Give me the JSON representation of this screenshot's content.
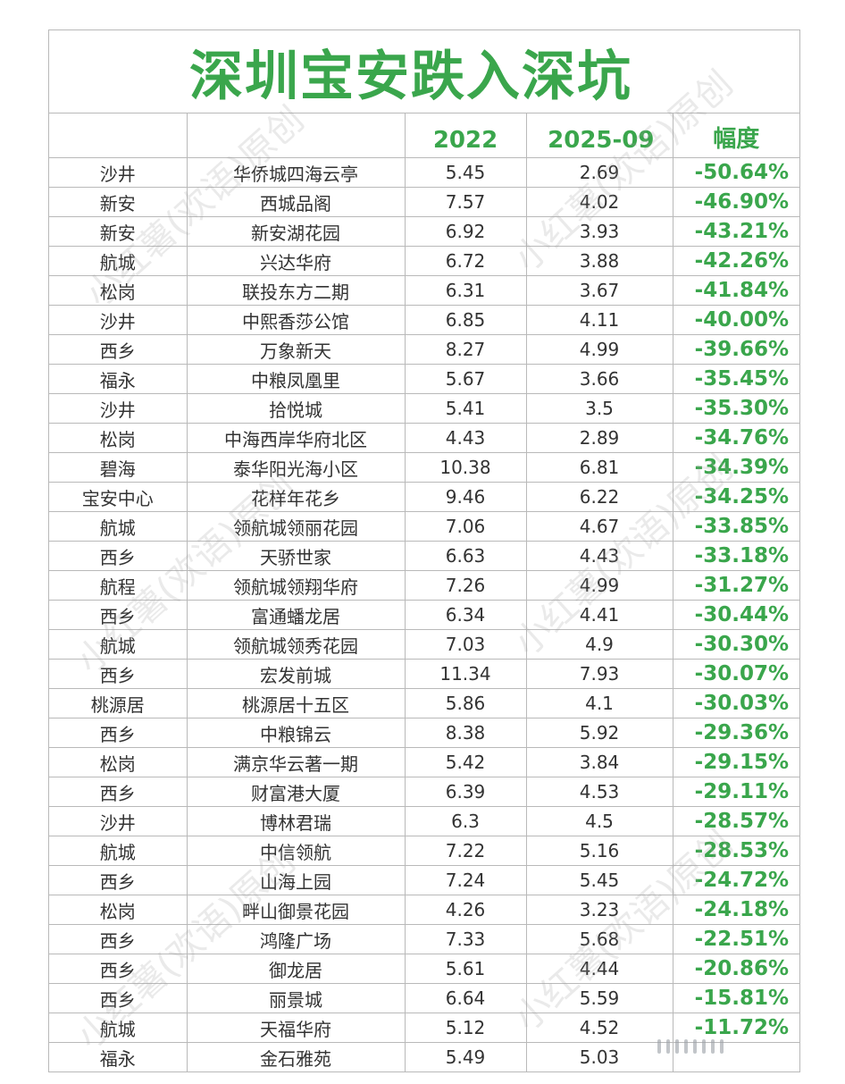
{
  "title": "深圳宝安跌入深坑",
  "watermark": "小红薯(欢语)原创",
  "columns": [
    "",
    "",
    "2022",
    "2025-09",
    "幅度"
  ],
  "rows": [
    {
      "area": "沙井",
      "estate": "华侨城四海云亭",
      "y2022": "5.45",
      "y2025": "2.69",
      "change": "-50.64%"
    },
    {
      "area": "新安",
      "estate": "西城品阁",
      "y2022": "7.57",
      "y2025": "4.02",
      "change": "-46.90%"
    },
    {
      "area": "新安",
      "estate": "新安湖花园",
      "y2022": "6.92",
      "y2025": "3.93",
      "change": "-43.21%"
    },
    {
      "area": "航城",
      "estate": "兴达华府",
      "y2022": "6.72",
      "y2025": "3.88",
      "change": "-42.26%"
    },
    {
      "area": "松岗",
      "estate": "联投东方二期",
      "y2022": "6.31",
      "y2025": "3.67",
      "change": "-41.84%"
    },
    {
      "area": "沙井",
      "estate": "中熙香莎公馆",
      "y2022": "6.85",
      "y2025": "4.11",
      "change": "-40.00%"
    },
    {
      "area": "西乡",
      "estate": "万象新天",
      "y2022": "8.27",
      "y2025": "4.99",
      "change": "-39.66%"
    },
    {
      "area": "福永",
      "estate": "中粮凤凰里",
      "y2022": "5.67",
      "y2025": "3.66",
      "change": "-35.45%"
    },
    {
      "area": "沙井",
      "estate": "拾悦城",
      "y2022": "5.41",
      "y2025": "3.5",
      "change": "-35.30%"
    },
    {
      "area": "松岗",
      "estate": "中海西岸华府北区",
      "y2022": "4.43",
      "y2025": "2.89",
      "change": "-34.76%"
    },
    {
      "area": "碧海",
      "estate": "泰华阳光海小区",
      "y2022": "10.38",
      "y2025": "6.81",
      "change": "-34.39%"
    },
    {
      "area": "宝安中心",
      "estate": "花样年花乡",
      "y2022": "9.46",
      "y2025": "6.22",
      "change": "-34.25%"
    },
    {
      "area": "航城",
      "estate": "领航城领丽花园",
      "y2022": "7.06",
      "y2025": "4.67",
      "change": "-33.85%"
    },
    {
      "area": "西乡",
      "estate": "天骄世家",
      "y2022": "6.63",
      "y2025": "4.43",
      "change": "-33.18%"
    },
    {
      "area": "航程",
      "estate": "领航城领翔华府",
      "y2022": "7.26",
      "y2025": "4.99",
      "change": "-31.27%"
    },
    {
      "area": "西乡",
      "estate": "富通蟠龙居",
      "y2022": "6.34",
      "y2025": "4.41",
      "change": "-30.44%"
    },
    {
      "area": "航城",
      "estate": "领航城领秀花园",
      "y2022": "7.03",
      "y2025": "4.9",
      "change": "-30.30%"
    },
    {
      "area": "西乡",
      "estate": "宏发前城",
      "y2022": "11.34",
      "y2025": "7.93",
      "change": "-30.07%"
    },
    {
      "area": "桃源居",
      "estate": "桃源居十五区",
      "y2022": "5.86",
      "y2025": "4.1",
      "change": "-30.03%"
    },
    {
      "area": "西乡",
      "estate": "中粮锦云",
      "y2022": "8.38",
      "y2025": "5.92",
      "change": "-29.36%"
    },
    {
      "area": "松岗",
      "estate": "满京华云著一期",
      "y2022": "5.42",
      "y2025": "3.84",
      "change": "-29.15%"
    },
    {
      "area": "西乡",
      "estate": "财富港大厦",
      "y2022": "6.39",
      "y2025": "4.53",
      "change": "-29.11%"
    },
    {
      "area": "沙井",
      "estate": "博林君瑞",
      "y2022": "6.3",
      "y2025": "4.5",
      "change": "-28.57%"
    },
    {
      "area": "航城",
      "estate": "中信领航",
      "y2022": "7.22",
      "y2025": "5.16",
      "change": "-28.53%"
    },
    {
      "area": "西乡",
      "estate": "山海上园",
      "y2022": "7.24",
      "y2025": "5.45",
      "change": "-24.72%"
    },
    {
      "area": "松岗",
      "estate": "畔山御景花园",
      "y2022": "4.26",
      "y2025": "3.23",
      "change": "-24.18%"
    },
    {
      "area": "西乡",
      "estate": "鸿隆广场",
      "y2022": "7.33",
      "y2025": "5.68",
      "change": "-22.51%"
    },
    {
      "area": "西乡",
      "estate": "御龙居",
      "y2022": "5.61",
      "y2025": "4.44",
      "change": "-20.86%"
    },
    {
      "area": "西乡",
      "estate": "丽景城",
      "y2022": "6.64",
      "y2025": "5.59",
      "change": "-15.81%"
    },
    {
      "area": "航城",
      "estate": "天福华府",
      "y2022": "5.12",
      "y2025": "4.52",
      "change": "-11.72%"
    },
    {
      "area": "福永",
      "estate": "金石雅苑",
      "y2022": "5.49",
      "y2025": "5.03",
      "change": ""
    }
  ],
  "colors": {
    "accent": "#3aa64c",
    "grid": "#b9b9b9",
    "text": "#333333"
  }
}
